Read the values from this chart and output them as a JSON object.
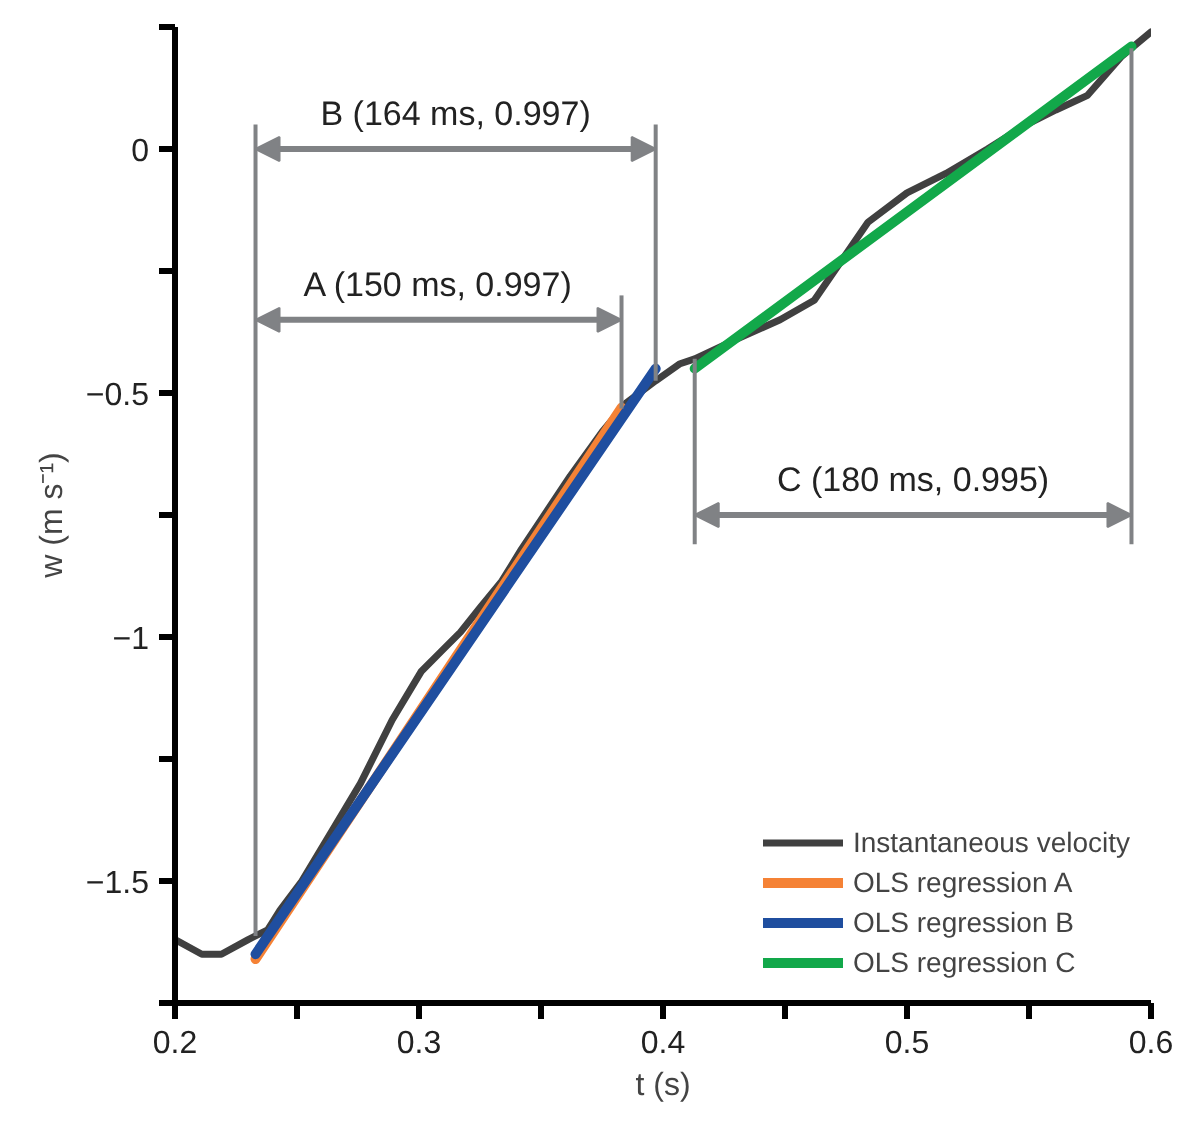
{
  "chart_data": {
    "type": "line",
    "xlabel": "t (s)",
    "ylabel": "w (m s⁻¹)",
    "xlim": [
      0.2,
      0.6
    ],
    "ylim": [
      -1.75,
      0.25
    ],
    "xticks": [
      0.2,
      {
        "value": 0.25,
        "label": null
      },
      0.3,
      {
        "value": 0.35,
        "label": null
      },
      0.4,
      {
        "value": 0.45,
        "label": null
      },
      0.5,
      {
        "value": 0.55,
        "label": null
      },
      0.6
    ],
    "yticks": [
      {
        "value": 0.25,
        "label": null
      },
      0,
      {
        "value": -0.25,
        "label": null
      },
      -0.5,
      {
        "value": -0.75,
        "label": null
      },
      -1,
      {
        "value": -1.25,
        "label": null
      },
      -1.5,
      {
        "value": -1.75,
        "label": null
      }
    ],
    "grid": false,
    "legend": "bottom right",
    "series": [
      {
        "name": "Instantaneous velocity",
        "color": "#404040",
        "x": [
          0.2,
          0.211,
          0.219,
          0.23,
          0.238,
          0.243,
          0.252,
          0.264,
          0.276,
          0.289,
          0.301,
          0.309,
          0.317,
          0.325,
          0.334,
          0.342,
          0.35,
          0.362,
          0.375,
          0.385,
          0.397,
          0.407,
          0.413,
          0.43,
          0.448,
          0.462,
          0.473,
          0.484,
          0.5,
          0.516,
          0.533,
          0.549,
          0.561,
          0.574,
          0.588,
          0.6
        ],
        "values": [
          -1.62,
          -1.65,
          -1.65,
          -1.62,
          -1.6,
          -1.56,
          -1.5,
          -1.4,
          -1.3,
          -1.17,
          -1.07,
          -1.03,
          -0.99,
          -0.94,
          -0.885,
          -0.82,
          -0.76,
          -0.67,
          -0.58,
          -0.52,
          -0.475,
          -0.44,
          -0.43,
          -0.39,
          -0.35,
          -0.31,
          -0.23,
          -0.15,
          -0.09,
          -0.05,
          0.0,
          0.05,
          0.08,
          0.11,
          0.19,
          0.24
        ]
      },
      {
        "name": "OLS regression A",
        "color": "#f58235",
        "x": [
          0.233,
          0.383
        ],
        "values": [
          -1.66,
          -0.53
        ]
      },
      {
        "name": "OLS regression B",
        "color": "#1f4e9f",
        "x": [
          0.233,
          0.397
        ],
        "values": [
          -1.65,
          -0.45
        ]
      },
      {
        "name": "OLS regression C",
        "color": "#12a84a",
        "x": [
          0.413,
          0.592
        ],
        "values": [
          -0.45,
          0.21
        ]
      }
    ],
    "ref_lines": [
      {
        "axis": "x",
        "value": 0.233,
        "label": null,
        "color": "#808285"
      },
      {
        "axis": "x",
        "value": 0.383,
        "label": null,
        "color": "#808285"
      },
      {
        "axis": "x",
        "value": 0.397,
        "label": null,
        "color": "#808285"
      },
      {
        "axis": "x",
        "value": 0.413,
        "label": null,
        "color": "#808285"
      },
      {
        "axis": "x",
        "value": 0.592,
        "label": null,
        "color": "#808285"
      }
    ],
    "annotations": [
      "A (150 ms, 0.997)",
      "B (164 ms, 0.997)",
      "C (180 ms, 0.995)"
    ]
  }
}
